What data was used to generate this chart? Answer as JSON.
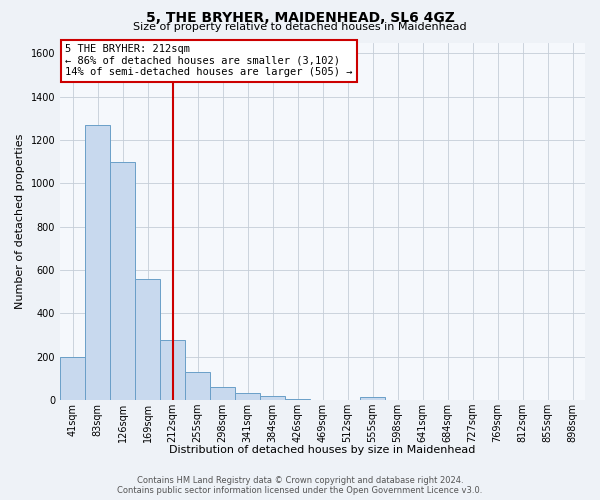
{
  "title": "5, THE BRYHER, MAIDENHEAD, SL6 4GZ",
  "subtitle": "Size of property relative to detached houses in Maidenhead",
  "bar_labels": [
    "41sqm",
    "83sqm",
    "126sqm",
    "169sqm",
    "212sqm",
    "255sqm",
    "298sqm",
    "341sqm",
    "384sqm",
    "426sqm",
    "469sqm",
    "512sqm",
    "555sqm",
    "598sqm",
    "641sqm",
    "684sqm",
    "727sqm",
    "769sqm",
    "812sqm",
    "855sqm",
    "898sqm"
  ],
  "bar_values": [
    200,
    1270,
    1100,
    560,
    275,
    130,
    60,
    30,
    17,
    5,
    0,
    0,
    15,
    0,
    0,
    0,
    0,
    0,
    0,
    0,
    0
  ],
  "bar_color": "#c8d9ee",
  "bar_edge_color": "#6a9fc8",
  "vline_label": "212sqm",
  "vline_color": "#cc0000",
  "ylim": [
    0,
    1650
  ],
  "yticks": [
    0,
    200,
    400,
    600,
    800,
    1000,
    1200,
    1400,
    1600
  ],
  "ylabel": "Number of detached properties",
  "xlabel": "Distribution of detached houses by size in Maidenhead",
  "annotation_title": "5 THE BRYHER: 212sqm",
  "annotation_line1": "← 86% of detached houses are smaller (3,102)",
  "annotation_line2": "14% of semi-detached houses are larger (505) →",
  "annotation_box_color": "#cc0000",
  "footer_line1": "Contains HM Land Registry data © Crown copyright and database right 2024.",
  "footer_line2": "Contains public sector information licensed under the Open Government Licence v3.0.",
  "bg_color": "#eef2f7",
  "plot_bg_color": "#f5f8fc",
  "grid_color": "#c5cdd8",
  "title_fontsize": 10,
  "subtitle_fontsize": 8,
  "ylabel_fontsize": 8,
  "xlabel_fontsize": 8,
  "tick_fontsize": 7,
  "annotation_fontsize": 7.5,
  "footer_fontsize": 6
}
